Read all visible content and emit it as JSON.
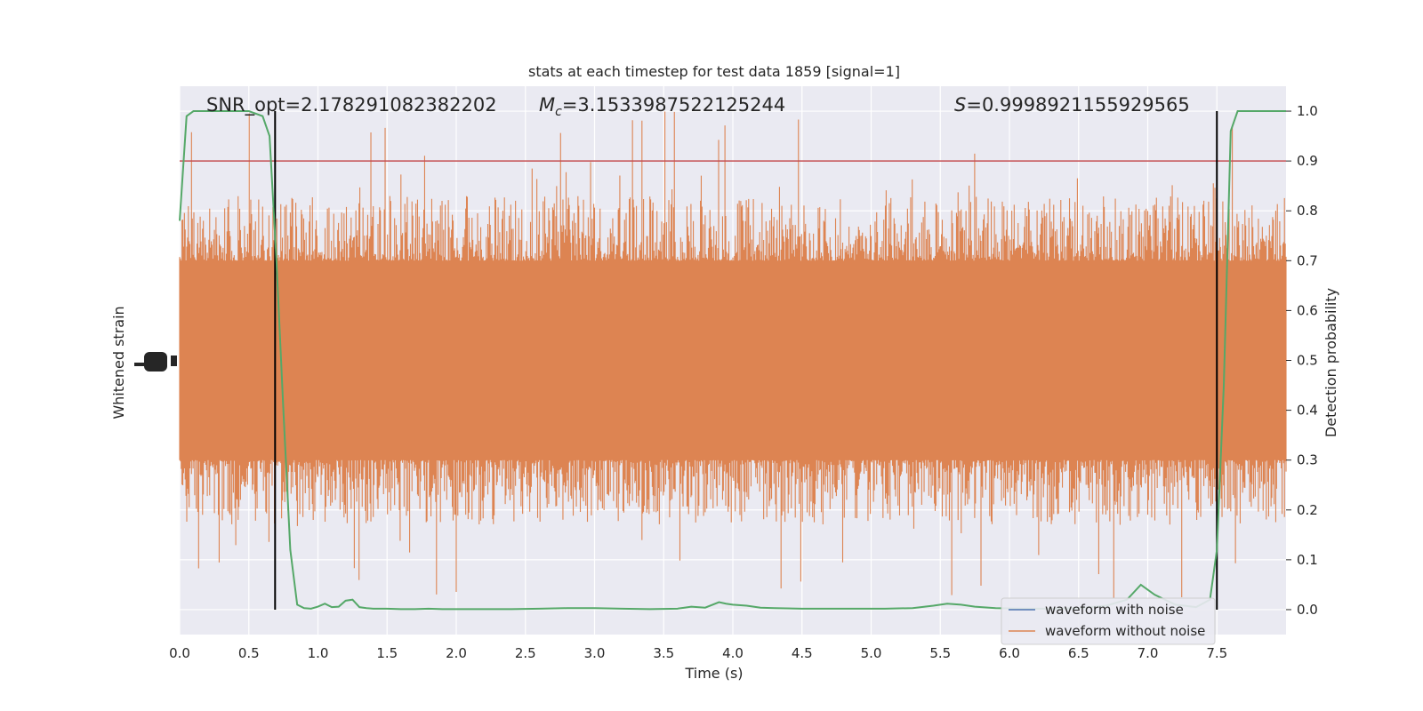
{
  "chart_data": {
    "type": "line",
    "title": "stats at each timestep for test data 1859 [signal=1]",
    "xlabel": "Time (s)",
    "ylabel_left": "Whitened strain",
    "ylabel_right": "Detection probability",
    "xlim": [
      0.0,
      8.0
    ],
    "ylim_right": [
      -0.05,
      1.05
    ],
    "x_ticks": [
      "0.0",
      "0.5",
      "1.0",
      "1.5",
      "2.0",
      "2.5",
      "3.0",
      "3.5",
      "4.0",
      "4.5",
      "5.0",
      "5.5",
      "6.0",
      "6.5",
      "7.0",
      "7.5"
    ],
    "y_right_ticks": [
      "0.0",
      "0.1",
      "0.2",
      "0.3",
      "0.4",
      "0.5",
      "0.6",
      "0.7",
      "0.8",
      "0.9",
      "1.0"
    ],
    "grid": true,
    "legend_position": "lower-right",
    "annotations": {
      "snr": "SNR_opt=2.178291082382202",
      "mc_symbol": "M",
      "mc_sub": "c",
      "mc_value": "=3.1533987522125244",
      "s_symbol": "S",
      "s_value": "=0.9998921155929565"
    },
    "series": [
      {
        "name": "waveform with noise",
        "color": "#4c72b0"
      },
      {
        "name": "waveform without noise",
        "color": "#dd8452"
      }
    ],
    "probability": {
      "color": "#55a868",
      "x": [
        0.0,
        0.05,
        0.1,
        0.15,
        0.2,
        0.3,
        0.4,
        0.5,
        0.6,
        0.65,
        0.7,
        0.75,
        0.8,
        0.85,
        0.9,
        0.95,
        1.0,
        1.05,
        1.1,
        1.15,
        1.2,
        1.25,
        1.3,
        1.35,
        1.4,
        1.45,
        1.5,
        1.6,
        1.7,
        1.8,
        1.9,
        2.0,
        2.2,
        2.4,
        2.6,
        2.8,
        3.0,
        3.2,
        3.4,
        3.6,
        3.65,
        3.7,
        3.8,
        3.9,
        3.95,
        4.0,
        4.1,
        4.2,
        4.3,
        4.5,
        4.7,
        4.9,
        5.1,
        5.3,
        5.45,
        5.55,
        5.65,
        5.75,
        5.9,
        6.1,
        6.3,
        6.5,
        6.7,
        6.85,
        6.95,
        7.05,
        7.2,
        7.35,
        7.45,
        7.5,
        7.55,
        7.6,
        7.65,
        7.7,
        7.8,
        8.0
      ],
      "y": [
        0.78,
        0.99,
        1.0,
        1.0,
        1.0,
        1.0,
        1.0,
        1.0,
        0.99,
        0.95,
        0.7,
        0.4,
        0.12,
        0.01,
        0.003,
        0.002,
        0.006,
        0.012,
        0.005,
        0.006,
        0.018,
        0.02,
        0.005,
        0.003,
        0.002,
        0.002,
        0.002,
        0.001,
        0.001,
        0.002,
        0.001,
        0.001,
        0.001,
        0.001,
        0.002,
        0.003,
        0.003,
        0.002,
        0.001,
        0.002,
        0.004,
        0.006,
        0.004,
        0.015,
        0.012,
        0.01,
        0.008,
        0.004,
        0.003,
        0.002,
        0.002,
        0.002,
        0.002,
        0.003,
        0.008,
        0.012,
        0.01,
        0.006,
        0.003,
        0.002,
        0.002,
        0.003,
        0.008,
        0.02,
        0.05,
        0.03,
        0.01,
        0.005,
        0.02,
        0.12,
        0.45,
        0.96,
        1.0,
        1.0,
        1.0,
        1.0
      ]
    },
    "threshold": {
      "value": 0.9,
      "color": "#c44e52"
    },
    "markers": {
      "x": [
        0.69,
        7.5
      ],
      "color": "#000000"
    },
    "noise_band": {
      "color": "#dd8452",
      "center": 0.5,
      "dense_half_width": 0.2,
      "spike_max": 1.0,
      "spike_min": 0.0
    }
  }
}
